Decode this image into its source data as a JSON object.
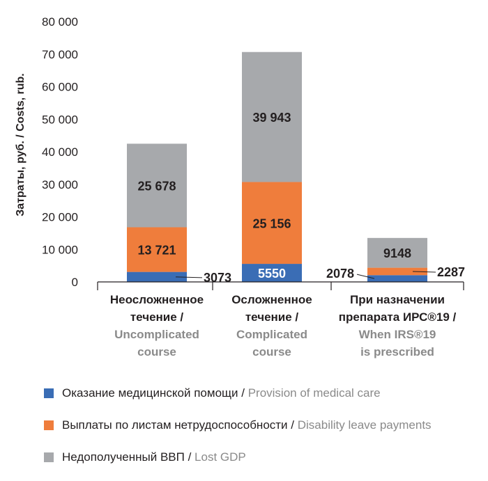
{
  "chart_data": {
    "type": "bar",
    "stacked": true,
    "ylabel": "Затраты, руб. / Costs, rub.",
    "ylim": [
      0,
      80000
    ],
    "y_ticks": [
      0,
      10000,
      20000,
      30000,
      40000,
      50000,
      60000,
      70000,
      80000
    ],
    "y_tick_labels": [
      "0",
      "10 000",
      "20 000",
      "30 000",
      "40 000",
      "50 000",
      "60 000",
      "70 000",
      "80 000"
    ],
    "categories": [
      {
        "ru": [
          "Неосложненное",
          "течение /"
        ],
        "en": [
          "Uncomplicated",
          "course"
        ]
      },
      {
        "ru": [
          "Осложненное",
          "течение /"
        ],
        "en": [
          "Complicated",
          "course"
        ]
      },
      {
        "ru": [
          "При назначении",
          "препарата ИРС®19 /"
        ],
        "en": [
          "When IRS®19",
          "is prescribed"
        ]
      }
    ],
    "series": [
      {
        "name_ru": "Оказание медицинской помощи",
        "name_en": "Provision of medical care",
        "color": "#3a6db5",
        "values": [
          3073,
          5550,
          2078
        ],
        "labels": [
          "3073",
          "5550",
          "2078"
        ]
      },
      {
        "name_ru": "Выплаты по листам нетрудоспособности",
        "name_en": "Disability leave payments",
        "color": "#ef7d3c",
        "values": [
          13721,
          25156,
          2287
        ],
        "labels": [
          "13 721",
          "25 156",
          "2287"
        ]
      },
      {
        "name_ru": "Недополученный ВВП",
        "name_en": "Lost GDP",
        "color": "#a7a9ac",
        "values": [
          25678,
          39943,
          9148
        ],
        "labels": [
          "25 678",
          "39 943",
          "9148"
        ]
      }
    ],
    "grid": false,
    "legend": "bottom"
  }
}
